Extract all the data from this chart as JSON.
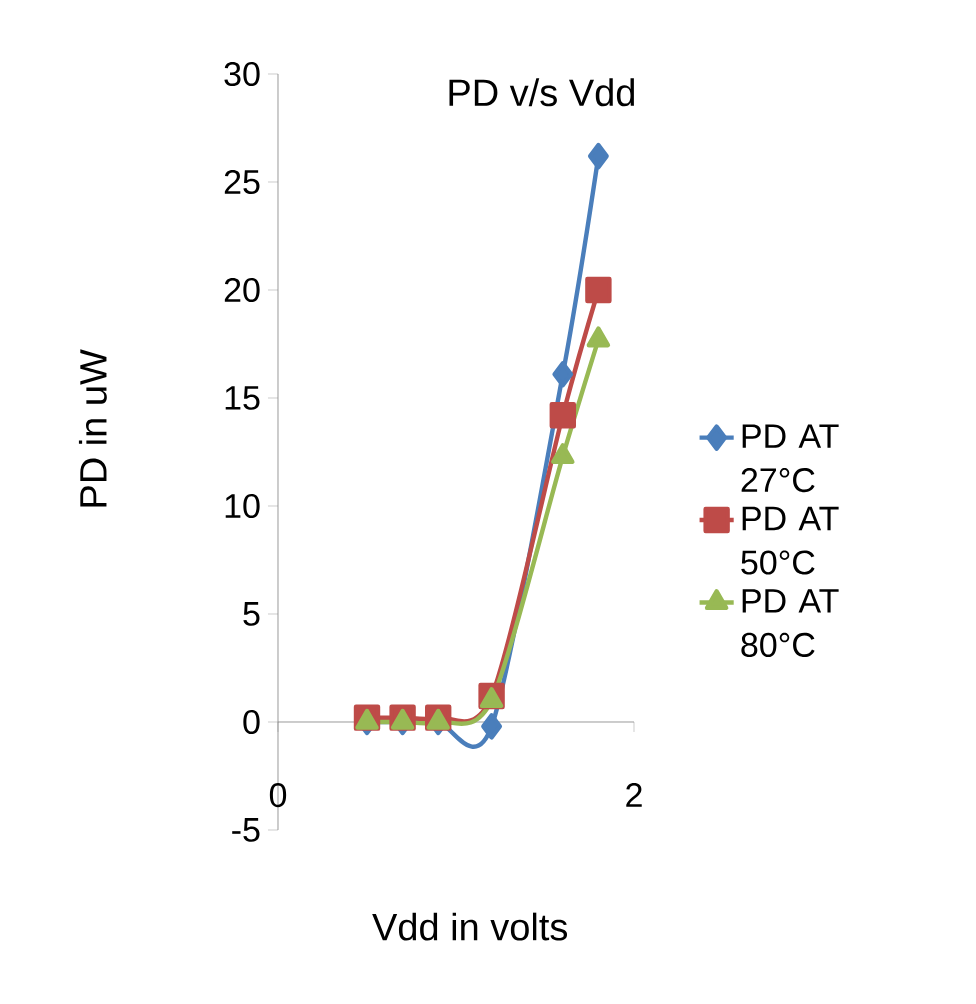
{
  "chart_data": {
    "type": "line",
    "title": "PD v/s Vdd",
    "xlabel": "Vdd in volts",
    "ylabel": "PD in uW",
    "x": [
      0.5,
      0.7,
      0.9,
      1.2,
      1.6,
      1.8
    ],
    "series": [
      {
        "name": "PD AT 27°C",
        "color": "#4a7ebb",
        "marker": "diamond",
        "values": [
          0,
          0,
          0,
          -0.2,
          16.1,
          26.2
        ]
      },
      {
        "name": "PD AT 50°C",
        "color": "#be4b48",
        "marker": "square",
        "values": [
          0.2,
          0.2,
          0.2,
          1.2,
          14.2,
          20
        ]
      },
      {
        "name": "PD AT 80°C",
        "color": "#98b954",
        "marker": "triangle",
        "values": [
          0,
          0,
          0,
          1,
          12.3,
          17.7
        ]
      }
    ],
    "xlim": [
      0,
      2
    ],
    "xticks": [
      0,
      2
    ],
    "ylim": [
      -5,
      30
    ],
    "yticks": [
      -5,
      0,
      5,
      10,
      15,
      20,
      25,
      30
    ],
    "grid": false,
    "legend": "right",
    "line_style": "solid"
  }
}
